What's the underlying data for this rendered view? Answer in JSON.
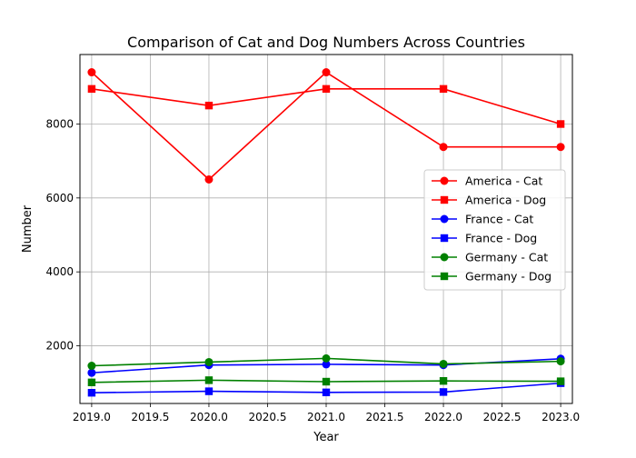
{
  "chart_data": {
    "type": "line",
    "title": "Comparison of Cat and Dog Numbers Across Countries",
    "xlabel": "Year",
    "ylabel": "Number",
    "xlim": [
      2018.9,
      2023.1
    ],
    "ylim": [
      440,
      9880
    ],
    "x_ticks": [
      "2019.0",
      "2019.5",
      "2020.0",
      "2020.5",
      "2021.0",
      "2021.5",
      "2022.0",
      "2022.5",
      "2023.0"
    ],
    "y_ticks": [
      "2000",
      "4000",
      "6000",
      "8000"
    ],
    "grid": true,
    "legend_position": "center-right",
    "x": [
      2019,
      2020,
      2021,
      2022,
      2023
    ],
    "series": [
      {
        "name": "America - Cat",
        "color": "#ff0000",
        "marker": "circle",
        "values": [
          9400,
          6500,
          9400,
          7380,
          7380
        ]
      },
      {
        "name": "America - Dog",
        "color": "#ff0000",
        "marker": "square",
        "values": [
          8950,
          8500,
          8950,
          8950,
          8000
        ]
      },
      {
        "name": "France - Cat",
        "color": "#0000ff",
        "marker": "circle",
        "values": [
          1270,
          1480,
          1500,
          1480,
          1650
        ]
      },
      {
        "name": "France - Dog",
        "color": "#0000ff",
        "marker": "square",
        "values": [
          730,
          770,
          740,
          750,
          990
        ]
      },
      {
        "name": "Germany - Cat",
        "color": "#008000",
        "marker": "circle",
        "values": [
          1460,
          1560,
          1660,
          1510,
          1580
        ]
      },
      {
        "name": "Germany - Dog",
        "color": "#008000",
        "marker": "square",
        "values": [
          1010,
          1070,
          1030,
          1050,
          1040
        ]
      }
    ]
  }
}
